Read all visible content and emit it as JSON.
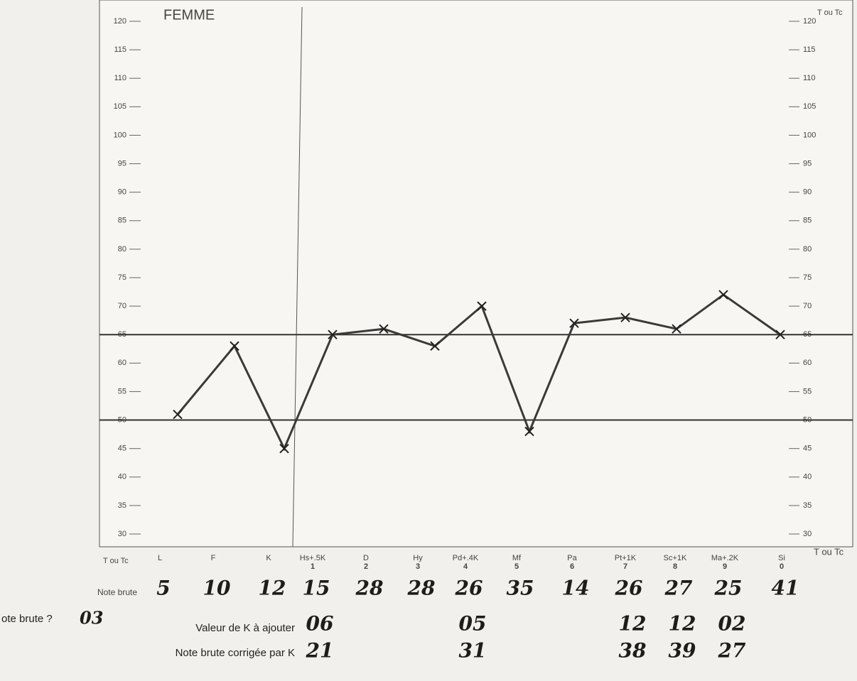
{
  "chart_data": {
    "type": "line",
    "title": "FEMME",
    "axis_label": "T ou Tc",
    "categories": [
      "L",
      "F",
      "K",
      "Hs+.5K",
      "D",
      "Hy",
      "Pd+.4K",
      "Mf",
      "Pa",
      "Pt+1K",
      "Sc+1K",
      "Ma+.2K",
      "Si"
    ],
    "category_numbers": [
      null,
      null,
      null,
      "1",
      "2",
      "3",
      "4",
      "5",
      "6",
      "7",
      "8",
      "9",
      "0"
    ],
    "values": [
      51,
      63,
      45,
      65,
      66,
      63,
      70,
      48,
      67,
      68,
      66,
      72,
      65
    ],
    "color": "#3a3a36",
    "ylim": [
      30,
      120
    ],
    "yticks": [
      30,
      35,
      40,
      45,
      50,
      55,
      60,
      65,
      70,
      75,
      80,
      85,
      90,
      95,
      100,
      105,
      110,
      115,
      120
    ],
    "reference_lines": [
      50,
      65
    ],
    "raw_score_label": "Note brute",
    "raw_scores": [
      "5",
      "10",
      "12",
      "15",
      "28",
      "28",
      "26",
      "35",
      "14",
      "26",
      "27",
      "25",
      "41"
    ],
    "question_label": "ote brute ?",
    "question_value": "03",
    "k_label": "Valeur de K à ajouter",
    "k_values": [
      null,
      null,
      null,
      "06",
      null,
      null,
      "05",
      null,
      null,
      "12",
      "12",
      "02",
      null
    ],
    "corrected_label": "Note brute corrigée par K",
    "corrected_scores": [
      null,
      null,
      null,
      "21",
      null,
      null,
      "31",
      null,
      null,
      "38",
      "39",
      "27",
      null
    ]
  }
}
